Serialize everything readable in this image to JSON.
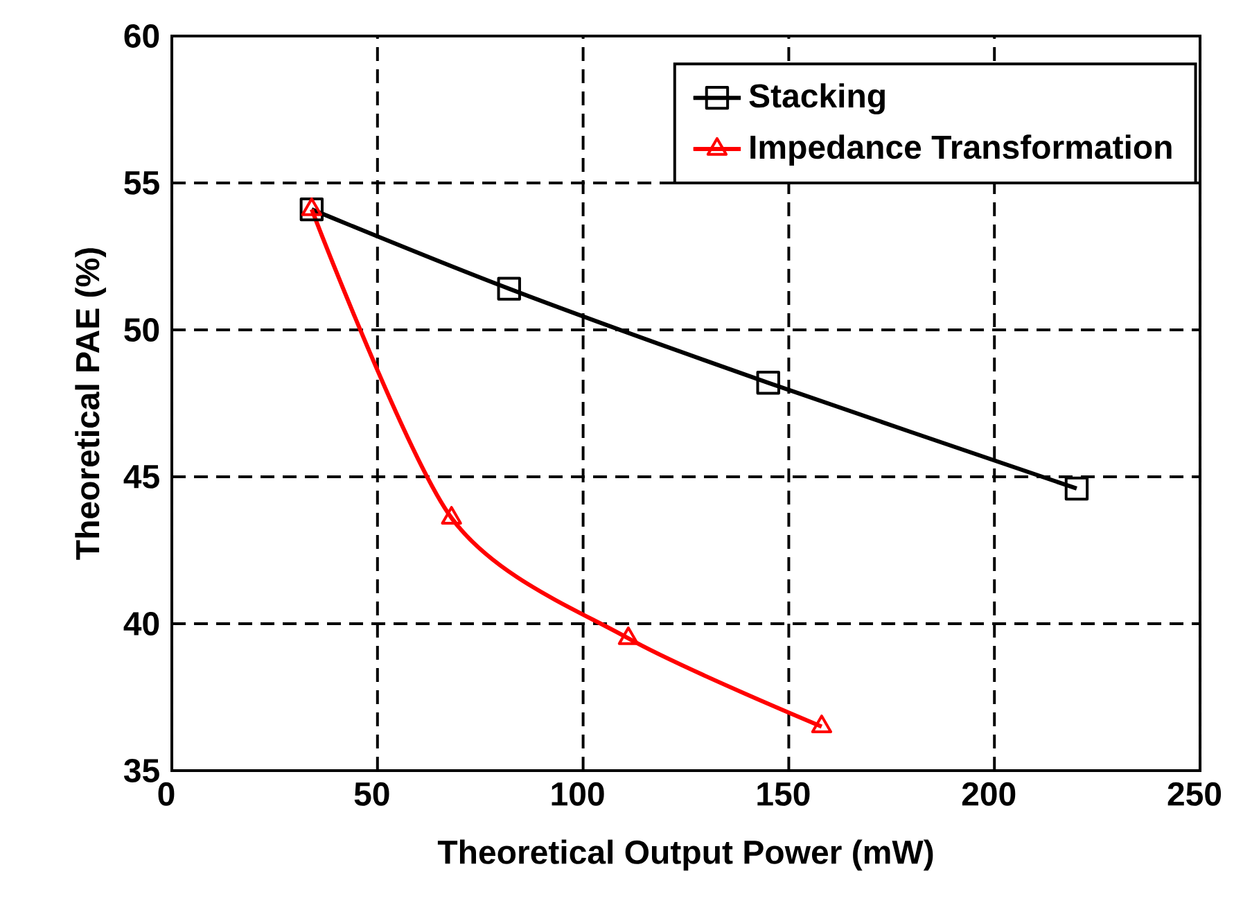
{
  "chart_data": {
    "type": "line",
    "xlabel": "Theoretical Output Power (mW)",
    "ylabel": "Theoretical PAE (%)",
    "xlim": [
      0,
      250
    ],
    "xticks": [
      0,
      50,
      100,
      150,
      200,
      250
    ],
    "ylim": [
      35,
      60
    ],
    "yticks": [
      35,
      40,
      45,
      50,
      55,
      60
    ],
    "grid": true,
    "legend": "top right",
    "series": [
      {
        "name": "Stacking",
        "color": "#000000",
        "marker": "square",
        "x": [
          34,
          82,
          145,
          220
        ],
        "values": [
          54.1,
          51.4,
          48.2,
          44.6
        ]
      },
      {
        "name": "Impedance Transformation",
        "color": "#ff0000",
        "marker": "triangle",
        "x": [
          34,
          68,
          111,
          158
        ],
        "values": [
          54.1,
          43.6,
          39.5,
          36.5
        ]
      }
    ]
  }
}
